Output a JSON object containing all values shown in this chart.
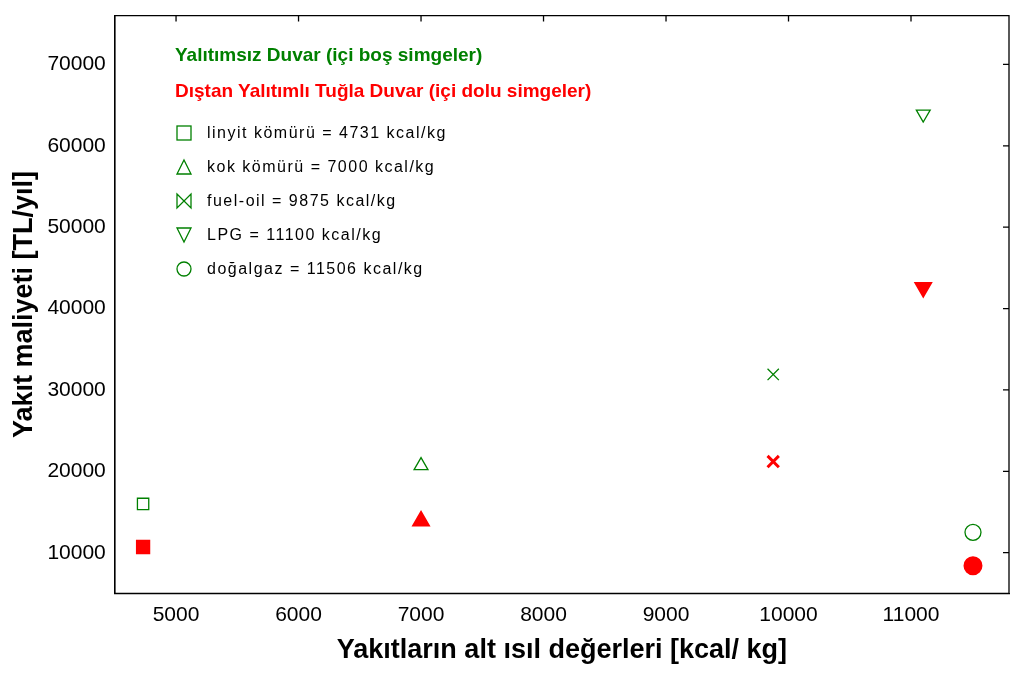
{
  "chart_data": {
    "type": "scatter",
    "xlabel": "Yakıtların alt ısıl değerleri [kcal/ kg]",
    "ylabel": "Yakıt maliyeti [TL/yıl]",
    "annotations": [
      "Yalıtımsız Duvar (içi boş simgeler)",
      "Dıştan Yalıtımlı Tuğla Duvar (içi dolu simgeler)"
    ],
    "xlim": [
      4500,
      11800
    ],
    "xticks": [
      5000,
      6000,
      7000,
      8000,
      9000,
      10000,
      11000
    ],
    "ylim": [
      5000,
      76000
    ],
    "yticks": [
      10000,
      20000,
      30000,
      40000,
      50000,
      60000,
      70000
    ],
    "grid": false,
    "legend": "top left",
    "series": [
      {
        "name": "linyit kömürü = 4731  kcal/kg",
        "color": "#008000",
        "marker": "square",
        "x": [
          4731
        ],
        "values": [
          16000
        ]
      },
      {
        "name": "kok kömürü = 7000 kcal/kg",
        "color": "#008000",
        "marker": "triangle",
        "x": [
          7000
        ],
        "values": [
          20700
        ]
      },
      {
        "name": "fuel-oil = 9875 kcal/kg",
        "color": "#008000",
        "marker": "cross",
        "x": [
          9875
        ],
        "values": [
          31900
        ]
      },
      {
        "name": "LPG = 11100 kcal/kg",
        "color": "#008000",
        "marker": "triangle-down",
        "x": [
          11100
        ],
        "values": [
          63900
        ]
      },
      {
        "name": "doğalgaz = 11506 kcal/kg",
        "color": "#008000",
        "marker": "circle",
        "x": [
          11506
        ],
        "values": [
          12500
        ]
      },
      {
        "color": "#ff0000",
        "marker": "square",
        "x": [
          4731
        ],
        "values": [
          10700
        ]
      },
      {
        "color": "#ff0000",
        "marker": "triangle",
        "x": [
          7000
        ],
        "values": [
          13900
        ]
      },
      {
        "color": "#ff0000",
        "marker": "cross",
        "x": [
          9875
        ],
        "values": [
          21200
        ]
      },
      {
        "color": "#ff0000",
        "marker": "triangle-down",
        "x": [
          11100
        ],
        "values": [
          42600
        ]
      },
      {
        "color": "#ff0000",
        "marker": "circle",
        "x": [
          11506
        ],
        "values": [
          8400
        ]
      }
    ]
  }
}
